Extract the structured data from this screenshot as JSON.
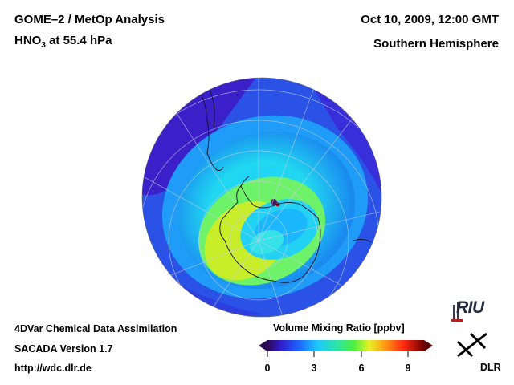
{
  "header": {
    "title": "GOME–2 / MetOp Analysis",
    "species_prefix": "HNO",
    "species_subscript": "3",
    "species_suffix": " at 55.4 hPa",
    "datetime": "Oct 10, 2009, 12:00 GMT",
    "region": "Southern Hemisphere"
  },
  "footer": {
    "line1": "4DVar Chemical Data Assimilation",
    "line2": "SACADA Version 1.7",
    "line3": "http://wdc.dlr.de"
  },
  "colorbar": {
    "title": "Volume Mixing Ratio [ppbv]",
    "ticks": [
      "0",
      "3",
      "6",
      "9"
    ],
    "range": [
      0,
      10
    ]
  },
  "logos": {
    "riu": "RIU",
    "dlr": "DLR"
  },
  "colors": {
    "low": "#3c1ec8",
    "mid": "#20d8f0",
    "high": "#c8ee2a"
  }
}
